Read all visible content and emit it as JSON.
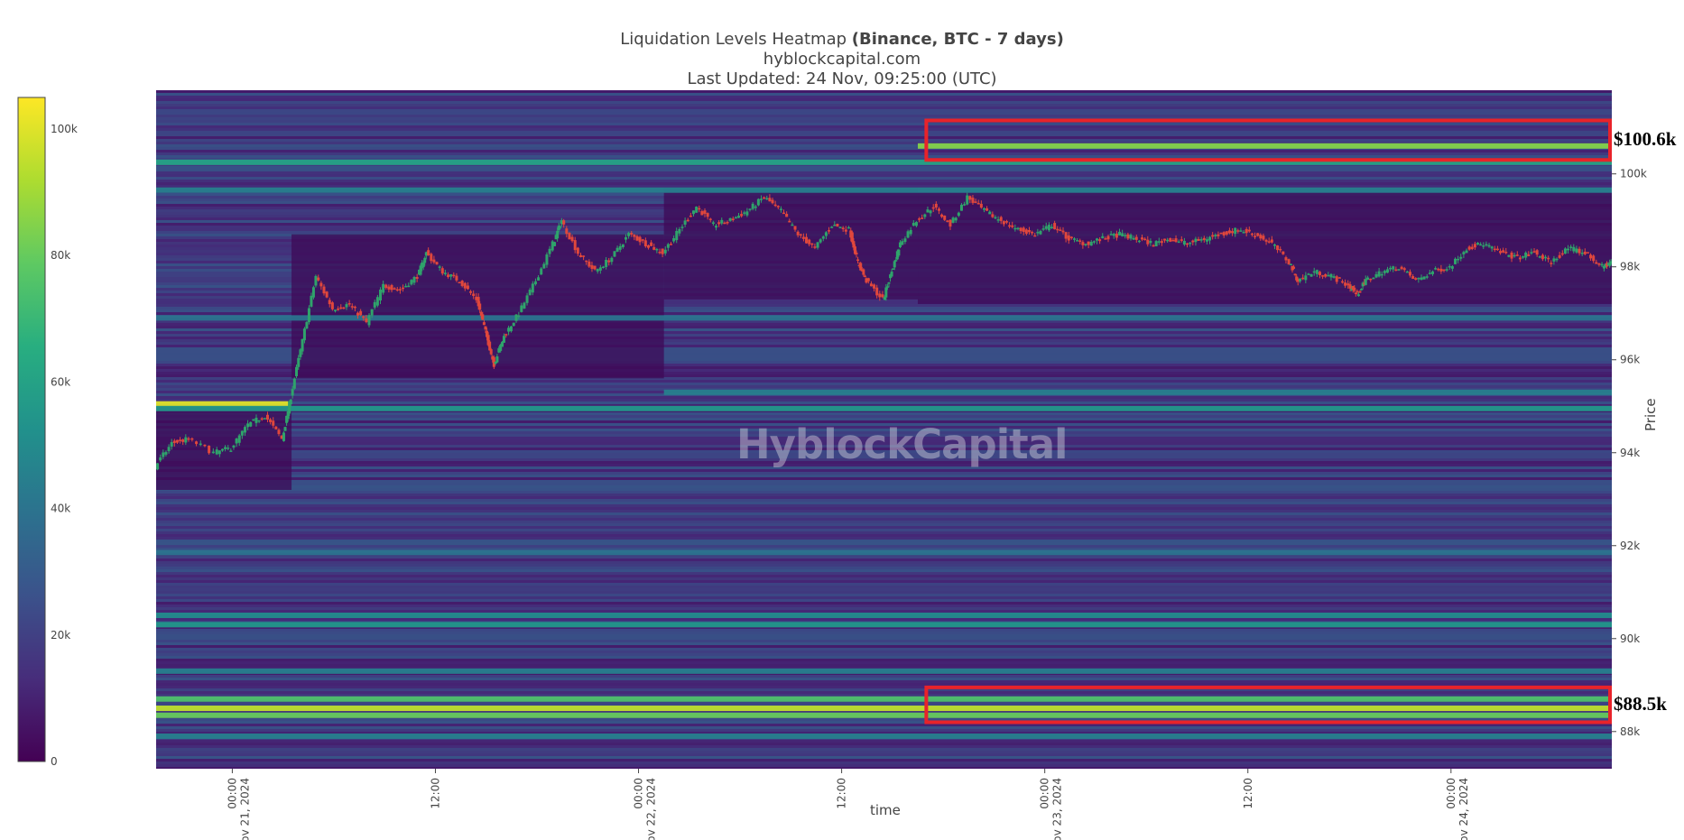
{
  "title": {
    "main": "Liquidation Levels Heatmap",
    "bold": "(Binance, BTC - 7 days)",
    "site": "hyblockcapital.com",
    "updated": "Last Updated: 24 Nov, 09:25:00 (UTC)"
  },
  "watermark": "HyblockCapital",
  "chart_data": {
    "type": "heatmap",
    "xlabel": "time",
    "ylabel": "Price",
    "ylim": [
      87200,
      101800
    ],
    "y_ticks": [
      {
        "value": 88000,
        "label": "88k"
      },
      {
        "value": 90000,
        "label": "90k"
      },
      {
        "value": 92000,
        "label": "92k"
      },
      {
        "value": 94000,
        "label": "94k"
      },
      {
        "value": 96000,
        "label": "96k"
      },
      {
        "value": 98000,
        "label": "98k"
      },
      {
        "value": 100000,
        "label": "100k"
      }
    ],
    "x_ticks": [
      {
        "hours": 4.5,
        "label": "00:00",
        "sublabel": "Nov 21, 2024"
      },
      {
        "hours": 16.5,
        "label": "12:00",
        "sublabel": ""
      },
      {
        "hours": 28.5,
        "label": "00:00",
        "sublabel": "Nov 22, 2024"
      },
      {
        "hours": 40.5,
        "label": "12:00",
        "sublabel": ""
      },
      {
        "hours": 52.5,
        "label": "00:00",
        "sublabel": "Nov 23, 2024"
      },
      {
        "hours": 64.5,
        "label": "12:00",
        "sublabel": ""
      },
      {
        "hours": 76.5,
        "label": "00:00",
        "sublabel": "Nov 24, 2024"
      }
    ],
    "xlim_hours": [
      0,
      86
    ],
    "colorbar": {
      "min": 0,
      "max": 105000,
      "ticks": [
        {
          "value": 0,
          "label": "0"
        },
        {
          "value": 20000,
          "label": "20k"
        },
        {
          "value": 40000,
          "label": "40k"
        },
        {
          "value": 60000,
          "label": "60k"
        },
        {
          "value": 80000,
          "label": "80k"
        },
        {
          "value": 100000,
          "label": "100k"
        }
      ],
      "colors": [
        "#440154",
        "#472d7b",
        "#3b528b",
        "#2c728e",
        "#21918c",
        "#28ae80",
        "#5ec962",
        "#addc30",
        "#fde725"
      ]
    },
    "liquidation_bands": [
      {
        "price": 100600,
        "value": 85000,
        "from_hours": 45
      },
      {
        "price": 100250,
        "value": 60000,
        "from_hours": 0
      },
      {
        "price": 99650,
        "value": 45000,
        "from_hours": 0
      },
      {
        "price": 95050,
        "value": 100000,
        "from_hours": 0,
        "to_hours": 7.8
      },
      {
        "price": 94950,
        "value": 55000,
        "from_hours": 0
      },
      {
        "price": 95300,
        "value": 45000,
        "from_hours": 30
      },
      {
        "price": 96900,
        "value": 40000,
        "from_hours": 0
      },
      {
        "price": 91850,
        "value": 40000,
        "from_hours": 0
      },
      {
        "price": 90500,
        "value": 50000,
        "from_hours": 0
      },
      {
        "price": 90300,
        "value": 55000,
        "from_hours": 0
      },
      {
        "price": 89300,
        "value": 45000,
        "from_hours": 0
      },
      {
        "price": 88700,
        "value": 75000,
        "from_hours": 0
      },
      {
        "price": 88500,
        "value": 95000,
        "from_hours": 0
      },
      {
        "price": 88350,
        "value": 80000,
        "from_hours": 0
      },
      {
        "price": 87900,
        "value": 45000,
        "from_hours": 0
      }
    ],
    "price_path": [
      {
        "h": 0,
        "p": 93700
      },
      {
        "h": 1,
        "p": 94200
      },
      {
        "h": 2,
        "p": 94300
      },
      {
        "h": 3.5,
        "p": 94000
      },
      {
        "h": 4.5,
        "p": 94100
      },
      {
        "h": 5.5,
        "p": 94600
      },
      {
        "h": 6.5,
        "p": 94800
      },
      {
        "h": 7.5,
        "p": 94300
      },
      {
        "h": 8,
        "p": 95200
      },
      {
        "h": 8.7,
        "p": 96400
      },
      {
        "h": 9.5,
        "p": 97800
      },
      {
        "h": 10.5,
        "p": 97100
      },
      {
        "h": 11.5,
        "p": 97200
      },
      {
        "h": 12.5,
        "p": 96800
      },
      {
        "h": 13.5,
        "p": 97600
      },
      {
        "h": 14.5,
        "p": 97500
      },
      {
        "h": 15.5,
        "p": 97800
      },
      {
        "h": 16,
        "p": 98300
      },
      {
        "h": 17,
        "p": 97900
      },
      {
        "h": 18,
        "p": 97700
      },
      {
        "h": 19,
        "p": 97300
      },
      {
        "h": 19.5,
        "p": 96600
      },
      {
        "h": 20,
        "p": 95900
      },
      {
        "h": 20.6,
        "p": 96500
      },
      {
        "h": 21.5,
        "p": 97000
      },
      {
        "h": 22.5,
        "p": 97700
      },
      {
        "h": 23.5,
        "p": 98500
      },
      {
        "h": 24,
        "p": 99000
      },
      {
        "h": 25,
        "p": 98300
      },
      {
        "h": 26,
        "p": 97900
      },
      {
        "h": 27,
        "p": 98200
      },
      {
        "h": 28,
        "p": 98700
      },
      {
        "h": 29,
        "p": 98500
      },
      {
        "h": 30,
        "p": 98300
      },
      {
        "h": 31,
        "p": 98800
      },
      {
        "h": 32,
        "p": 99300
      },
      {
        "h": 33,
        "p": 98900
      },
      {
        "h": 34,
        "p": 99000
      },
      {
        "h": 35,
        "p": 99200
      },
      {
        "h": 36,
        "p": 99500
      },
      {
        "h": 37,
        "p": 99200
      },
      {
        "h": 38,
        "p": 98700
      },
      {
        "h": 39,
        "p": 98400
      },
      {
        "h": 40,
        "p": 98900
      },
      {
        "h": 41,
        "p": 98800
      },
      {
        "h": 41.5,
        "p": 98100
      },
      {
        "h": 42,
        "p": 97700
      },
      {
        "h": 43,
        "p": 97300
      },
      {
        "h": 43.5,
        "p": 97900
      },
      {
        "h": 44,
        "p": 98500
      },
      {
        "h": 45,
        "p": 99000
      },
      {
        "h": 46,
        "p": 99300
      },
      {
        "h": 47,
        "p": 98900
      },
      {
        "h": 48,
        "p": 99500
      },
      {
        "h": 49,
        "p": 99200
      },
      {
        "h": 50,
        "p": 99000
      },
      {
        "h": 51,
        "p": 98800
      },
      {
        "h": 52,
        "p": 98700
      },
      {
        "h": 53,
        "p": 98900
      },
      {
        "h": 54,
        "p": 98600
      },
      {
        "h": 55,
        "p": 98500
      },
      {
        "h": 56,
        "p": 98600
      },
      {
        "h": 57,
        "p": 98700
      },
      {
        "h": 58,
        "p": 98600
      },
      {
        "h": 59,
        "p": 98500
      },
      {
        "h": 60,
        "p": 98600
      },
      {
        "h": 61,
        "p": 98500
      },
      {
        "h": 62,
        "p": 98600
      },
      {
        "h": 63,
        "p": 98700
      },
      {
        "h": 64,
        "p": 98800
      },
      {
        "h": 65,
        "p": 98700
      },
      {
        "h": 66,
        "p": 98500
      },
      {
        "h": 67,
        "p": 98100
      },
      {
        "h": 67.5,
        "p": 97700
      },
      {
        "h": 68.5,
        "p": 97900
      },
      {
        "h": 69.5,
        "p": 97800
      },
      {
        "h": 70.5,
        "p": 97600
      },
      {
        "h": 71,
        "p": 97400
      },
      {
        "h": 71.5,
        "p": 97700
      },
      {
        "h": 72.5,
        "p": 97900
      },
      {
        "h": 73.5,
        "p": 98000
      },
      {
        "h": 74.5,
        "p": 97700
      },
      {
        "h": 75.5,
        "p": 97900
      },
      {
        "h": 76.5,
        "p": 98000
      },
      {
        "h": 77.5,
        "p": 98400
      },
      {
        "h": 78.5,
        "p": 98500
      },
      {
        "h": 79.5,
        "p": 98300
      },
      {
        "h": 80.5,
        "p": 98200
      },
      {
        "h": 81.5,
        "p": 98300
      },
      {
        "h": 82.5,
        "p": 98100
      },
      {
        "h": 83.5,
        "p": 98400
      },
      {
        "h": 84.5,
        "p": 98300
      },
      {
        "h": 85.5,
        "p": 98000
      },
      {
        "h": 86,
        "p": 98100
      }
    ],
    "annotations": [
      {
        "label": "$100.6k",
        "price_top": 101150,
        "price_bottom": 100300,
        "from_hours": 45.5,
        "to_hours": 86
      },
      {
        "label": "$88.5k",
        "price_top": 88950,
        "price_bottom": 88200,
        "from_hours": 45.5,
        "to_hours": 86
      }
    ],
    "annotation_color": "#e8232a"
  }
}
